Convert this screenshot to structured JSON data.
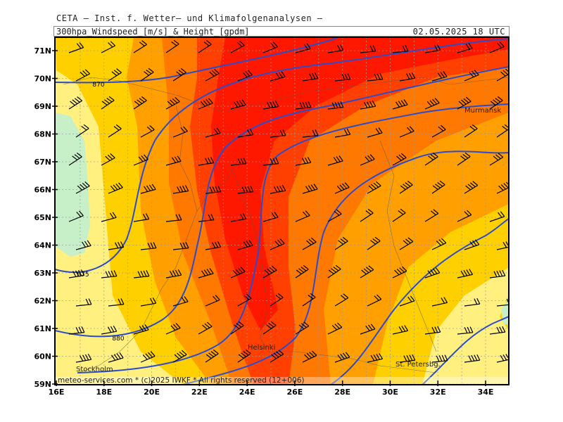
{
  "header": {
    "provider": "CETA – Inst. f. Wetter– und Klimafolgenanalysen –",
    "parameter": "300hpa_Windspeed_[m/s]_&_Height_[gpdm]",
    "datetime": "02.05.2025  18 UTC"
  },
  "axes": {
    "lat_labels": [
      "71N",
      "70N",
      "69N",
      "68N",
      "67N",
      "66N",
      "65N",
      "64N",
      "63N",
      "62N",
      "61N",
      "60N",
      "59N"
    ],
    "lon_labels": [
      "16E",
      "18E",
      "20E",
      "22E",
      "24E",
      "26E",
      "28E",
      "30E",
      "32E",
      "34E"
    ]
  },
  "isoline_labels": [
    "870",
    "875",
    "880"
  ],
  "cities": [
    "Murmansk",
    "Helsinki",
    "Stockholm",
    "St. Petersbg."
  ],
  "credit": "meteo-services.com * (c)2025 IWKF * All rights reserved (12+006)",
  "colors": {
    "calm": "#c8f0c8",
    "light": "#fff080",
    "moderate": "#ffd000",
    "strong": "#ffa000",
    "stronger": "#ff7800",
    "very_strong": "#ff4000",
    "max": "#ff1800",
    "height_contour": "#2c4ccc",
    "frame": "#000000"
  }
}
